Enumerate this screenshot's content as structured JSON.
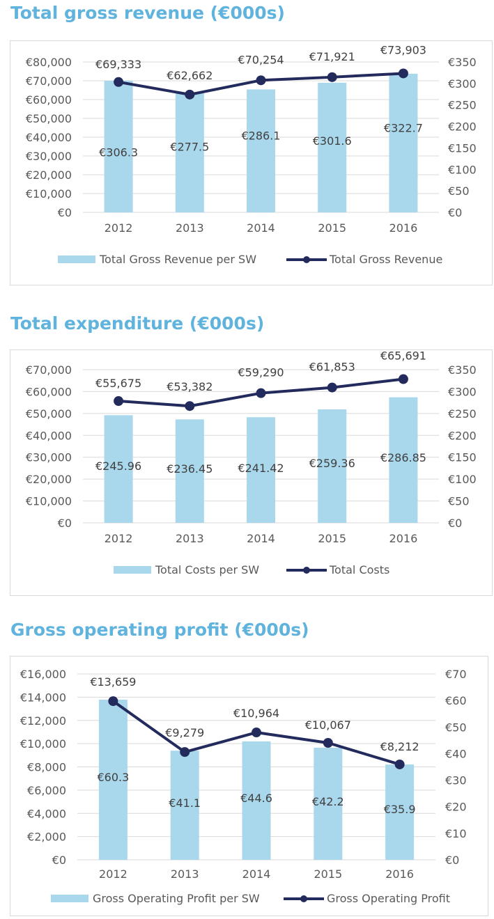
{
  "colors": {
    "title": "#5fb3dc",
    "bar": "#a9d7ec",
    "line": "#232a5c",
    "grid": "#d9d9d9"
  },
  "chart_data": [
    {
      "type": "bar+line",
      "title": "Total gross revenue (€000s)",
      "categories": [
        "2012",
        "2013",
        "2014",
        "2015",
        "2016"
      ],
      "left_axis": {
        "min": 0,
        "max": 80000,
        "ticks": [
          "€80,000",
          "€70,000",
          "€60,000",
          "€50,000",
          "€40,000",
          "€30,000",
          "€20,000",
          "€10,000",
          "€0"
        ]
      },
      "right_axis": {
        "min": 0,
        "max": 350,
        "ticks": [
          "€350",
          "€300",
          "€250",
          "€200",
          "€150",
          "€100",
          "€50",
          "€0"
        ]
      },
      "series": [
        {
          "name": "Total Gross Revenue per SW",
          "kind": "bar",
          "axis": "right",
          "values": [
            306.3,
            277.5,
            286.1,
            301.6,
            322.7
          ],
          "labels": [
            "€306.3",
            "€277.5",
            "€286.1",
            "€301.6",
            "€322.7"
          ]
        },
        {
          "name": "Total Gross Revenue",
          "kind": "line",
          "axis": "left",
          "values": [
            69333,
            62662,
            70254,
            71921,
            73903
          ],
          "labels": [
            "€69,333",
            "€62,662",
            "€70,254",
            "€71,921",
            "€73,903"
          ]
        }
      ],
      "grid": true,
      "legend_position": "bottom"
    },
    {
      "type": "bar+line",
      "title": "Total expenditure (€000s)",
      "categories": [
        "2012",
        "2013",
        "2014",
        "2015",
        "2016"
      ],
      "left_axis": {
        "min": 0,
        "max": 70000,
        "ticks": [
          "€70,000",
          "€60,000",
          "€50,000",
          "€40,000",
          "€30,000",
          "€20,000",
          "€10,000",
          "€0"
        ]
      },
      "right_axis": {
        "min": 0,
        "max": 350,
        "ticks": [
          "€350",
          "€300",
          "€250",
          "€200",
          "€150",
          "€100",
          "€50",
          "€0"
        ]
      },
      "series": [
        {
          "name": "Total Costs per SW",
          "kind": "bar",
          "axis": "right",
          "values": [
            245.96,
            236.45,
            241.42,
            259.36,
            286.85
          ],
          "labels": [
            "€245.96",
            "€236.45",
            "€241.42",
            "€259.36",
            "€286.85"
          ]
        },
        {
          "name": "Total Costs",
          "kind": "line",
          "axis": "left",
          "values": [
            55675,
            53382,
            59290,
            61853,
            65691
          ],
          "labels": [
            "€55,675",
            "€53,382",
            "€59,290",
            "€61,853",
            "€65,691"
          ]
        }
      ],
      "grid": true,
      "legend_position": "bottom"
    },
    {
      "type": "bar+line",
      "title": "Gross operating profit (€000s)",
      "categories": [
        "2012",
        "2013",
        "2014",
        "2015",
        "2016"
      ],
      "left_axis": {
        "min": 0,
        "max": 16000,
        "ticks": [
          "€16,000",
          "€14,000",
          "€12,000",
          "€10,000",
          "€8,000",
          "€6,000",
          "€4,000",
          "€2,000",
          "€0"
        ]
      },
      "right_axis": {
        "min": 0,
        "max": 70,
        "ticks": [
          "€70",
          "€60",
          "€50",
          "€40",
          "€30",
          "€20",
          "€10",
          "€0"
        ]
      },
      "series": [
        {
          "name": "Gross Operating Profit per SW",
          "kind": "bar",
          "axis": "right",
          "values": [
            60.3,
            41.1,
            44.6,
            42.2,
            35.9
          ],
          "labels": [
            "€60.3",
            "€41.1",
            "€44.6",
            "€42.2",
            "€35.9"
          ]
        },
        {
          "name": "Gross Operating Profit",
          "kind": "line",
          "axis": "left",
          "values": [
            13659,
            9279,
            10964,
            10067,
            8212
          ],
          "labels": [
            "€13,659",
            "€9,279",
            "€10,964",
            "€10,067",
            "€8,212"
          ]
        }
      ],
      "grid": true,
      "legend_position": "bottom"
    }
  ]
}
